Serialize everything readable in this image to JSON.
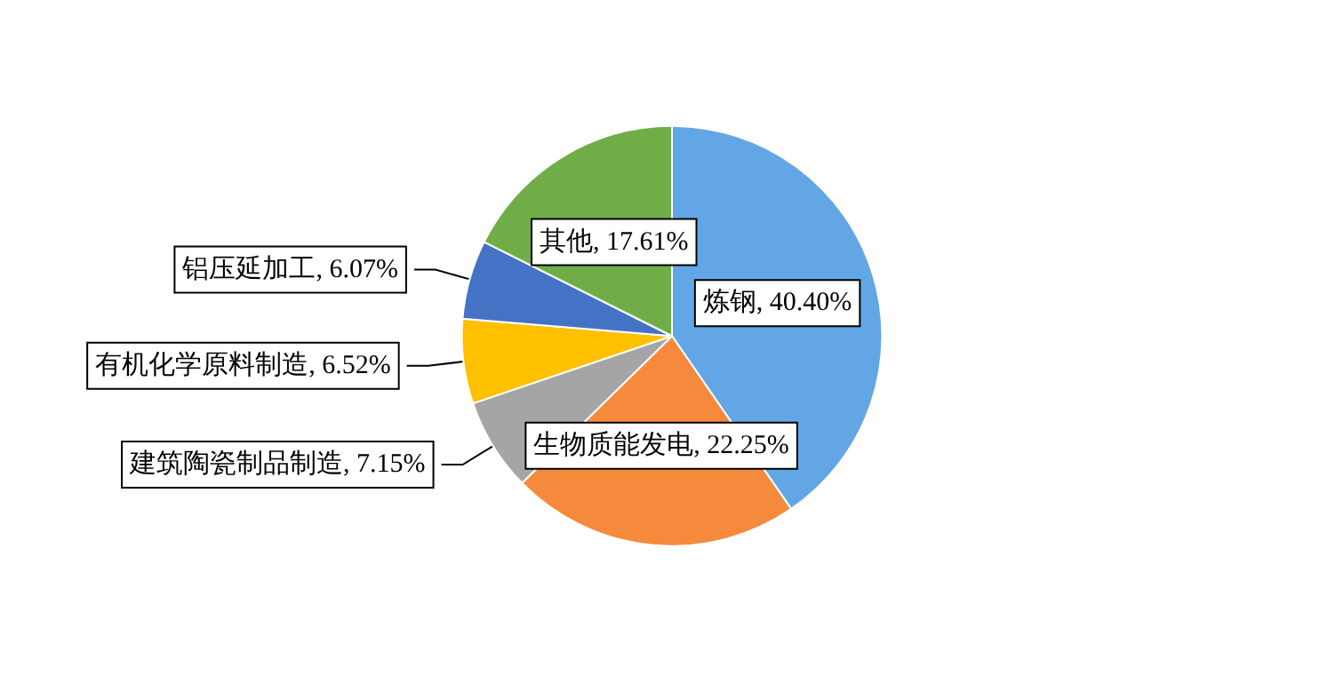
{
  "chart_data": {
    "type": "pie",
    "categories": [
      "炼钢",
      "生物质能发电",
      "建筑陶瓷制品制造",
      "有机化学原料制造",
      "铝压延加工",
      "其他"
    ],
    "values": [
      40.4,
      22.25,
      7.15,
      6.52,
      6.07,
      17.61
    ],
    "value_labels": [
      "40.40%",
      "22.25%",
      "7.15%",
      "6.52%",
      "6.07%",
      "17.61%"
    ],
    "colors": [
      "#62a6e6",
      "#f58a3c",
      "#a5a5a5",
      "#ffc000",
      "#4472c4",
      "#70ad47"
    ],
    "legend": false
  }
}
